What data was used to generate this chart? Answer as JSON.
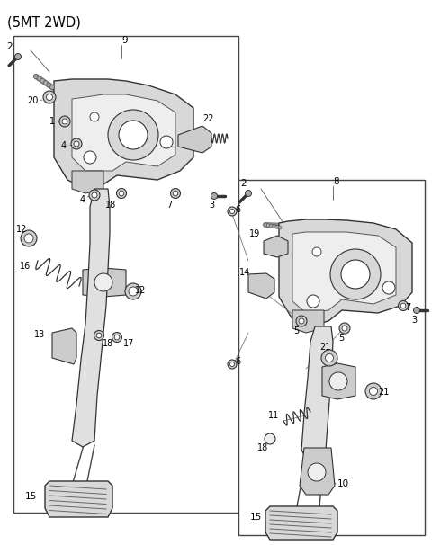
{
  "title": "(5MT 2WD)",
  "bg_color": "#ffffff",
  "fig_width": 4.8,
  "fig_height": 6.06,
  "dpi": 100,
  "line_color": "#222222",
  "part_fill": "#e8e8e8",
  "part_edge": "#333333"
}
